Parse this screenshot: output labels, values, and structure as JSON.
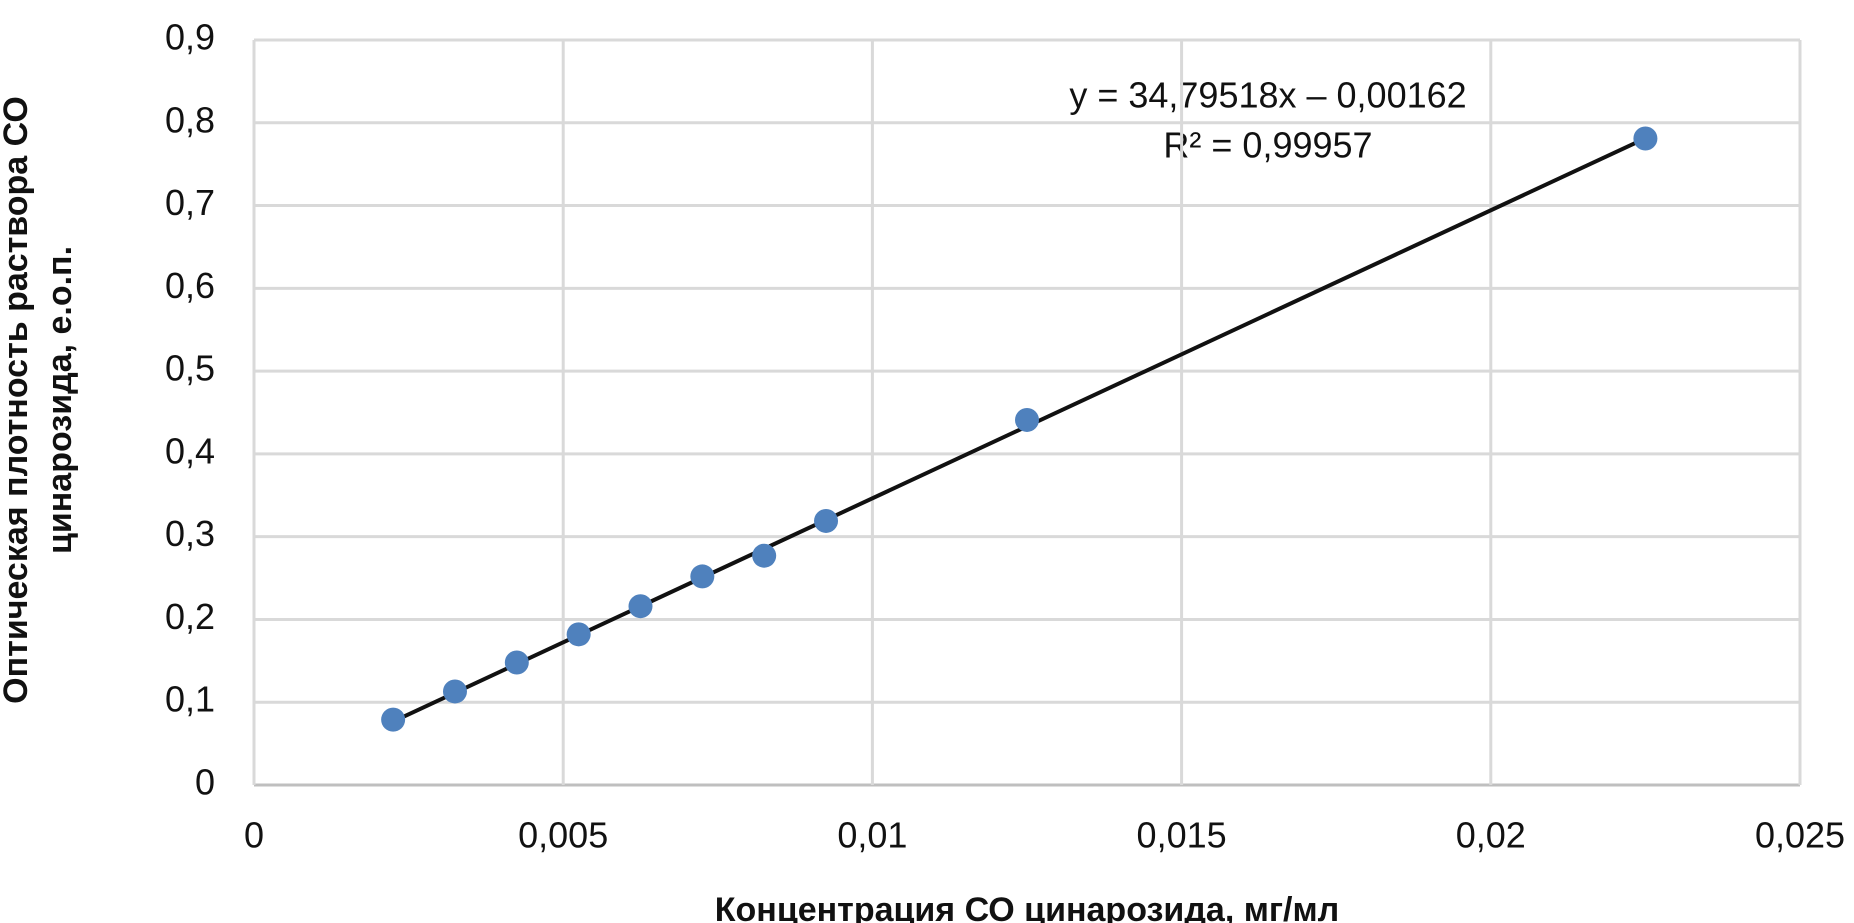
{
  "chart_data": {
    "type": "scatter",
    "x_label": "Концентрация СО цинарозида, мг/мл",
    "y_label": [
      "Оптическая плотность раствора СО",
      "цинарозида, е.о.п."
    ],
    "x": [
      0.00225,
      0.00325,
      0.00425,
      0.00525,
      0.00625,
      0.00725,
      0.00825,
      0.00925,
      0.0125,
      0.0225
    ],
    "values": [
      0.079,
      0.113,
      0.148,
      0.182,
      0.216,
      0.252,
      0.277,
      0.319,
      0.441,
      0.781
    ],
    "color": "#4f81bd",
    "trendline": {
      "slope": 34.79518,
      "intercept": -0.00162,
      "color": "#111111",
      "equation": "y = 34,79518x – 0,00162",
      "r2": "R² = 0,99957"
    },
    "xlim": [
      0,
      0.025
    ],
    "xticks": [
      0,
      {
        "value": 0.005,
        "label": "0,005"
      },
      {
        "value": 0.01,
        "label": "0,01"
      },
      {
        "value": 0.015,
        "label": "0,015"
      },
      {
        "value": 0.02,
        "label": "0,02"
      },
      {
        "value": 0.025,
        "label": "0,025"
      }
    ],
    "ylim": [
      0,
      0.9
    ],
    "yticks": [
      0,
      {
        "value": 0.1,
        "label": "0,1"
      },
      {
        "value": 0.2,
        "label": "0,2"
      },
      {
        "value": 0.3,
        "label": "0,3"
      },
      {
        "value": 0.4,
        "label": "0,4"
      },
      {
        "value": 0.5,
        "label": "0,5"
      },
      {
        "value": 0.6,
        "label": "0,6"
      },
      {
        "value": 0.7,
        "label": "0,7"
      },
      {
        "value": 0.8,
        "label": "0,8"
      },
      {
        "value": 0.9,
        "label": "0,9"
      }
    ],
    "grid": true
  }
}
